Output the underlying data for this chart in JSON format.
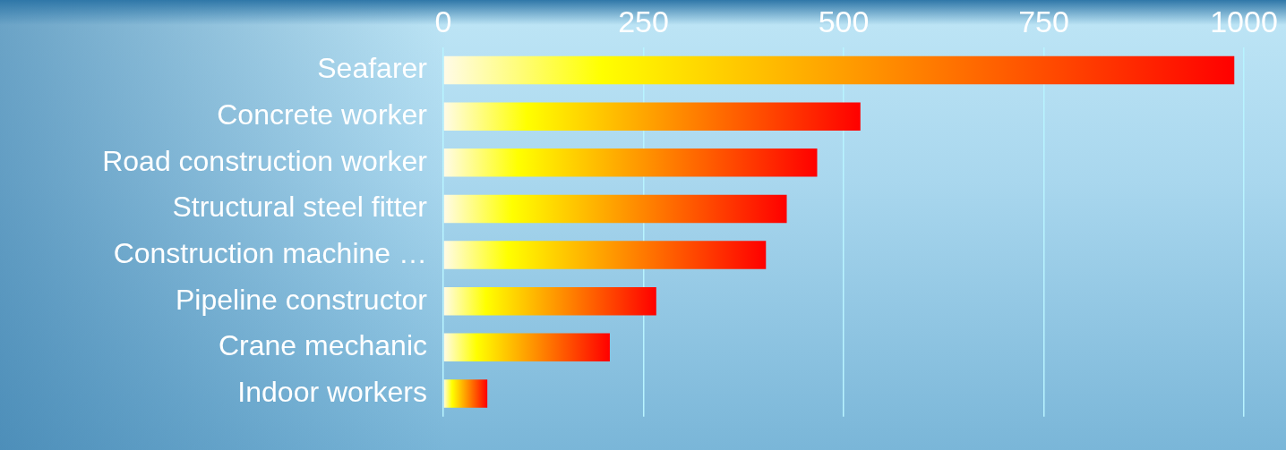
{
  "chart_data": {
    "type": "bar",
    "orientation": "horizontal",
    "categories": [
      "Seafarer",
      "Concrete worker",
      "Road construction worker",
      "Structural steel fitter",
      "Construction machine …",
      "Pipeline constructor",
      "Crane mechanic",
      "Indoor workers"
    ],
    "values": [
      988,
      521,
      467,
      429,
      403,
      266,
      208,
      55
    ],
    "color": "#ff8000",
    "xlim": [
      0,
      1000
    ],
    "xticks": [
      0,
      250,
      500,
      750,
      1000
    ],
    "grid": "x",
    "legend": false
  }
}
